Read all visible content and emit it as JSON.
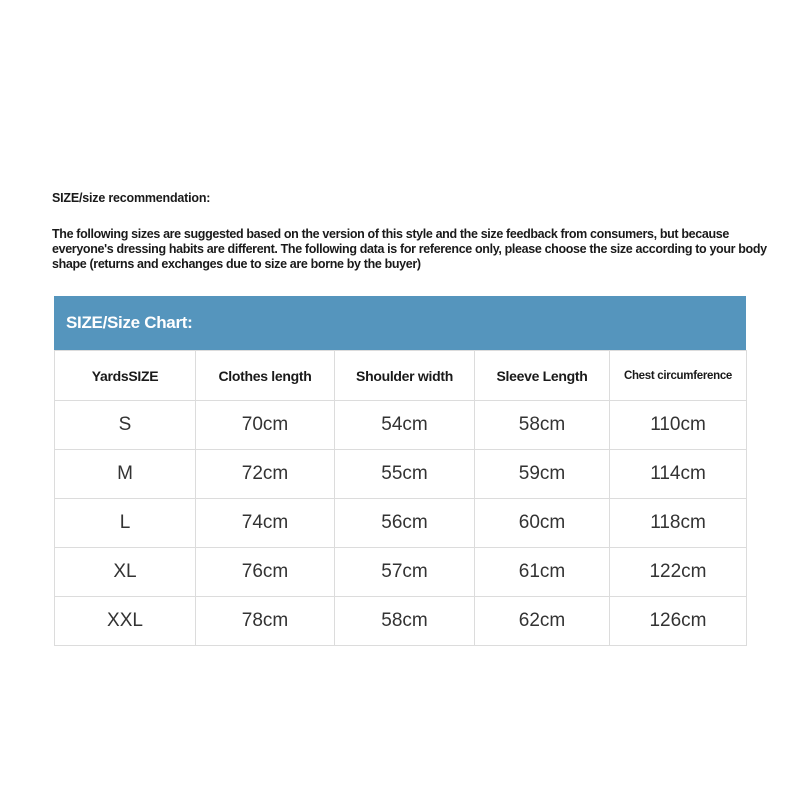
{
  "recommendation": {
    "title": "SIZE/size recommendation:",
    "body": "The following sizes are suggested based on the version of this style and the size feedback from consumers, but because everyone's dressing habits are different. The following data is for reference only, please choose the size according to your body shape (returns and exchanges due to size are borne by the buyer)"
  },
  "size_chart": {
    "title": "SIZE/Size Chart:",
    "header_color": "#5595bd",
    "columns": [
      "YardsSIZE",
      "Clothes length",
      "Shoulder width",
      "Sleeve Length",
      "Chest circumference"
    ],
    "rows": [
      [
        "S",
        "70cm",
        "54cm",
        "58cm",
        "110cm"
      ],
      [
        "M",
        "72cm",
        "55cm",
        "59cm",
        "114cm"
      ],
      [
        "L",
        "74cm",
        "56cm",
        "60cm",
        "118cm"
      ],
      [
        "XL",
        "76cm",
        "57cm",
        "61cm",
        "122cm"
      ],
      [
        "XXL",
        "78cm",
        "58cm",
        "62cm",
        "126cm"
      ]
    ]
  }
}
